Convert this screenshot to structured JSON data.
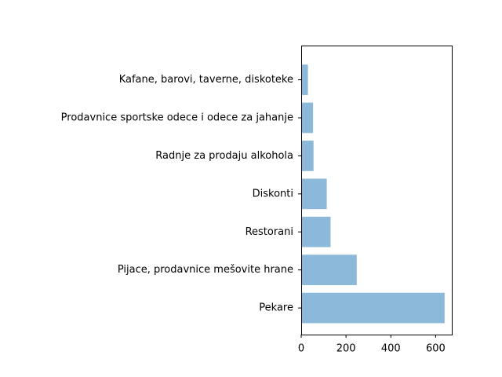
{
  "chart_data": {
    "type": "bar",
    "orientation": "horizontal",
    "categories": [
      "Pekare",
      "Pijace, prodavnice mešovite hrane",
      "Restorani",
      "Diskonti",
      "Radnje za prodaju alkohola",
      "Prodavnice sportske odece i odece za jahanje",
      "Kafane, barovi, taverne, diskoteke"
    ],
    "values": [
      640,
      248,
      131,
      114,
      55,
      53,
      30
    ],
    "title": "",
    "xlabel": "",
    "ylabel": "",
    "xlim": [
      0,
      672
    ],
    "xticks": [
      0,
      200,
      400,
      600
    ],
    "xtick_labels": [
      "0",
      "200",
      "400",
      "600"
    ],
    "grid": false,
    "legend": "none",
    "bar_color": "#8cb9da"
  }
}
